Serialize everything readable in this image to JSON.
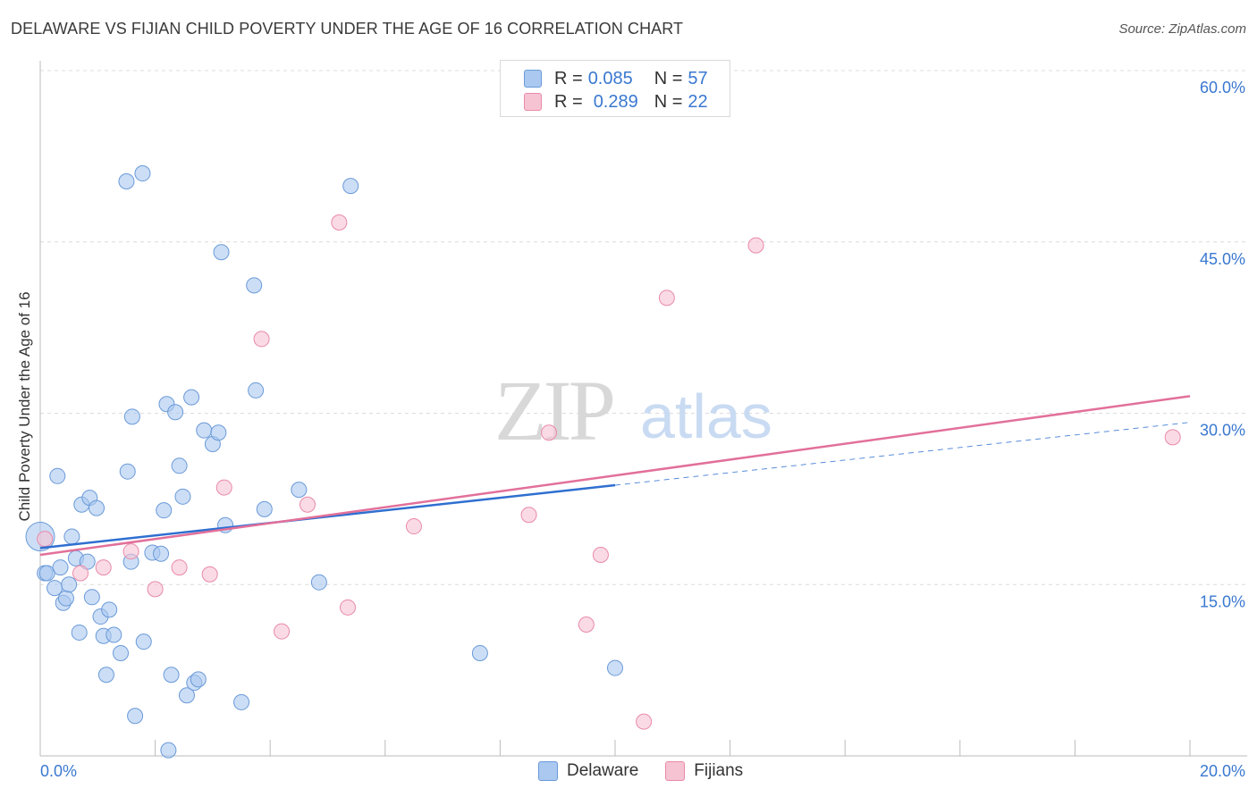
{
  "header": {
    "title": "DELAWARE VS FIJIAN CHILD POVERTY UNDER THE AGE OF 16 CORRELATION CHART",
    "source": "Source: ZipAtlas.com"
  },
  "legend": {
    "delaware": {
      "r_label": "R = ",
      "r_value": "0.085",
      "n_label": "N = ",
      "n_value": "57"
    },
    "fijians": {
      "r_label": "R = ",
      "r_value": "0.289",
      "n_label": "N = ",
      "n_value": "22"
    }
  },
  "watermark": {
    "zip": "ZIP",
    "atlas": "atlas"
  },
  "colors": {
    "delaware_fill": "#aac8f0",
    "delaware_stroke": "#6a9ad8",
    "delaware_line": "#2f6fd0",
    "fijians_fill": "#f6c3d3",
    "fijians_stroke": "#e98aa8",
    "fijians_line": "#e2709a",
    "axis_label": "#3a78d0",
    "grid": "#dcdcdc"
  },
  "chart_data": {
    "type": "scatter",
    "title": "DELAWARE VS FIJIAN CHILD POVERTY UNDER THE AGE OF 16 CORRELATION CHART",
    "xlabel": "",
    "ylabel": "Child Poverty Under the Age of 16",
    "xlim": [
      0,
      20
    ],
    "ylim": [
      0,
      60
    ],
    "x_tick_labels": [
      "0.0%",
      "20.0%"
    ],
    "y_ticks": [
      15,
      30,
      45,
      60
    ],
    "y_tick_labels": [
      "15.0%",
      "30.0%",
      "45.0%",
      "60.0%"
    ],
    "grid": true,
    "legend_position": "top-center",
    "series": [
      {
        "name": "Delaware",
        "R": 0.085,
        "N": 57,
        "trend": {
          "x": [
            0,
            10
          ],
          "y": [
            18.2,
            23.7
          ],
          "dashed_extension": {
            "x": [
              10,
              20
            ],
            "y": [
              23.7,
              29.2
            ]
          }
        },
        "points": [
          [
            0.0,
            19.2
          ],
          [
            0.08,
            16.0
          ],
          [
            0.12,
            16.0
          ],
          [
            0.25,
            14.7
          ],
          [
            0.3,
            24.5
          ],
          [
            0.35,
            16.5
          ],
          [
            0.4,
            13.4
          ],
          [
            0.45,
            13.8
          ],
          [
            0.5,
            15.0
          ],
          [
            0.55,
            19.2
          ],
          [
            0.62,
            17.3
          ],
          [
            0.68,
            10.8
          ],
          [
            0.72,
            22.0
          ],
          [
            0.82,
            17.0
          ],
          [
            0.86,
            22.6
          ],
          [
            0.9,
            13.9
          ],
          [
            0.98,
            21.7
          ],
          [
            1.05,
            12.2
          ],
          [
            1.1,
            10.5
          ],
          [
            1.15,
            7.1
          ],
          [
            1.2,
            12.8
          ],
          [
            1.28,
            10.6
          ],
          [
            1.4,
            9.0
          ],
          [
            1.5,
            50.3
          ],
          [
            1.52,
            24.9
          ],
          [
            1.58,
            17.0
          ],
          [
            1.6,
            29.7
          ],
          [
            1.65,
            3.5
          ],
          [
            1.78,
            51.0
          ],
          [
            1.8,
            10.0
          ],
          [
            1.95,
            17.8
          ],
          [
            2.1,
            17.7
          ],
          [
            2.15,
            21.5
          ],
          [
            2.2,
            30.8
          ],
          [
            2.23,
            0.5
          ],
          [
            2.28,
            7.1
          ],
          [
            2.35,
            30.1
          ],
          [
            2.42,
            25.4
          ],
          [
            2.48,
            22.7
          ],
          [
            2.55,
            5.3
          ],
          [
            2.63,
            31.4
          ],
          [
            2.68,
            6.4
          ],
          [
            2.75,
            6.7
          ],
          [
            2.85,
            28.5
          ],
          [
            3.0,
            27.3
          ],
          [
            3.1,
            28.3
          ],
          [
            3.15,
            44.1
          ],
          [
            3.22,
            20.2
          ],
          [
            3.5,
            4.7
          ],
          [
            3.72,
            41.2
          ],
          [
            3.75,
            32.0
          ],
          [
            3.9,
            21.6
          ],
          [
            4.5,
            23.3
          ],
          [
            4.85,
            15.2
          ],
          [
            5.4,
            49.9
          ],
          [
            7.65,
            9.0
          ],
          [
            10.0,
            7.7
          ]
        ]
      },
      {
        "name": "Fijians",
        "R": 0.289,
        "N": 22,
        "trend": {
          "x": [
            0,
            20
          ],
          "y": [
            17.6,
            31.5
          ]
        },
        "points": [
          [
            0.08,
            19.0
          ],
          [
            0.7,
            16.0
          ],
          [
            1.1,
            16.5
          ],
          [
            1.58,
            17.9
          ],
          [
            2.0,
            14.6
          ],
          [
            2.42,
            16.5
          ],
          [
            2.95,
            15.9
          ],
          [
            3.2,
            23.5
          ],
          [
            3.85,
            36.5
          ],
          [
            4.2,
            10.9
          ],
          [
            4.65,
            22.0
          ],
          [
            5.35,
            13.0
          ],
          [
            5.2,
            46.7
          ],
          [
            6.5,
            20.1
          ],
          [
            8.85,
            28.3
          ],
          [
            8.5,
            21.1
          ],
          [
            9.5,
            11.5
          ],
          [
            9.75,
            17.6
          ],
          [
            10.5,
            3.0
          ],
          [
            10.9,
            40.1
          ],
          [
            12.45,
            44.7
          ],
          [
            19.7,
            27.9
          ]
        ]
      }
    ]
  },
  "bottom_legend": {
    "delaware": "Delaware",
    "fijians": "Fijians"
  }
}
